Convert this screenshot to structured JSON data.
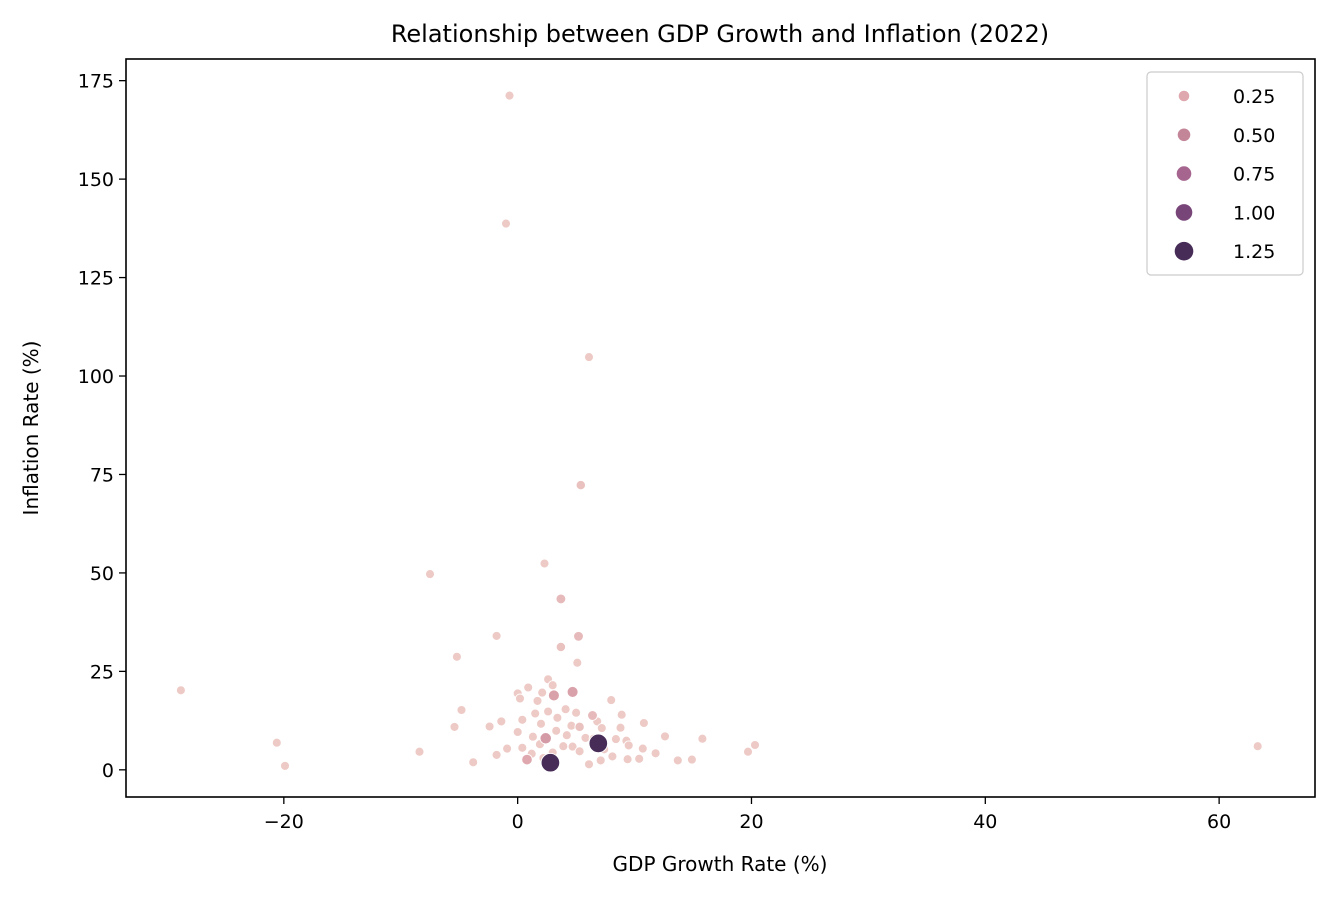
{
  "chart_data": {
    "type": "scatter",
    "title": "Relationship between GDP Growth and Inflation (2022)",
    "xlabel": "GDP Growth Rate (%)",
    "ylabel": "Inflation Rate (%)",
    "xlim": [
      -33.5,
      68.2
    ],
    "ylim": [
      -6.9,
      180.5
    ],
    "xticks": [
      -20,
      0,
      20,
      40,
      60
    ],
    "xtick_labels": [
      "−20",
      "0",
      "20",
      "40",
      "60"
    ],
    "yticks": [
      0,
      25,
      50,
      75,
      100,
      125,
      150,
      175
    ],
    "ytick_labels": [
      "0",
      "25",
      "50",
      "75",
      "100",
      "125",
      "150",
      "175"
    ],
    "grid": false,
    "legend": {
      "placement": "top-right",
      "entries": [
        {
          "label": "0.25",
          "value": 0.25,
          "color": "#dfa8ae"
        },
        {
          "label": "0.50",
          "value": 0.5,
          "color": "#c38698"
        },
        {
          "label": "0.75",
          "value": 0.75,
          "color": "#a5658e"
        },
        {
          "label": "1.00",
          "value": 1.0,
          "color": "#784578"
        },
        {
          "label": "1.25",
          "value": 1.25,
          "color": "#462c57"
        }
      ]
    },
    "points": [
      {
        "x": -0.7,
        "y": 171.2,
        "s": 0.05
      },
      {
        "x": -1.0,
        "y": 138.7,
        "s": 0.05
      },
      {
        "x": 6.1,
        "y": 104.8,
        "s": 0.05
      },
      {
        "x": 5.4,
        "y": 72.3,
        "s": 0.1
      },
      {
        "x": 2.3,
        "y": 52.4,
        "s": 0.05
      },
      {
        "x": -7.5,
        "y": 49.7,
        "s": 0.05
      },
      {
        "x": 3.7,
        "y": 43.4,
        "s": 0.15
      },
      {
        "x": -1.8,
        "y": 34.0,
        "s": 0.05
      },
      {
        "x": 5.2,
        "y": 33.9,
        "s": 0.15
      },
      {
        "x": 3.7,
        "y": 31.2,
        "s": 0.1
      },
      {
        "x": -5.2,
        "y": 28.7,
        "s": 0.05
      },
      {
        "x": 5.1,
        "y": 27.2,
        "s": 0.05
      },
      {
        "x": -28.8,
        "y": 20.2,
        "s": 0.05
      },
      {
        "x": 4.7,
        "y": 19.8,
        "s": 0.3
      },
      {
        "x": 3.1,
        "y": 18.9,
        "s": 0.3
      },
      {
        "x": 8.0,
        "y": 17.7,
        "s": 0.05
      },
      {
        "x": 2.6,
        "y": 23.0,
        "s": 0.05
      },
      {
        "x": 0.0,
        "y": 19.4,
        "s": 0.05
      },
      {
        "x": 0.2,
        "y": 18.1,
        "s": 0.05
      },
      {
        "x": 1.7,
        "y": 17.5,
        "s": 0.05
      },
      {
        "x": 0.9,
        "y": 20.9,
        "s": 0.05
      },
      {
        "x": 2.1,
        "y": 19.6,
        "s": 0.05
      },
      {
        "x": 3.0,
        "y": 21.5,
        "s": 0.05
      },
      {
        "x": -4.8,
        "y": 15.2,
        "s": 0.05
      },
      {
        "x": -1.4,
        "y": 12.3,
        "s": 0.05
      },
      {
        "x": -2.4,
        "y": 11.0,
        "s": 0.05
      },
      {
        "x": -5.4,
        "y": 10.9,
        "s": 0.05
      },
      {
        "x": 0.4,
        "y": 12.7,
        "s": 0.05
      },
      {
        "x": 1.5,
        "y": 14.3,
        "s": 0.05
      },
      {
        "x": 2.6,
        "y": 14.8,
        "s": 0.05
      },
      {
        "x": 3.4,
        "y": 13.2,
        "s": 0.05
      },
      {
        "x": 4.1,
        "y": 15.4,
        "s": 0.05
      },
      {
        "x": 5.0,
        "y": 14.5,
        "s": 0.05
      },
      {
        "x": 6.4,
        "y": 13.8,
        "s": 0.15
      },
      {
        "x": 6.8,
        "y": 12.3,
        "s": 0.05
      },
      {
        "x": 8.9,
        "y": 14.0,
        "s": 0.05
      },
      {
        "x": 10.8,
        "y": 11.9,
        "s": 0.05
      },
      {
        "x": 2.0,
        "y": 11.7,
        "s": 0.05
      },
      {
        "x": 4.6,
        "y": 11.2,
        "s": 0.05
      },
      {
        "x": 5.3,
        "y": 10.9,
        "s": 0.1
      },
      {
        "x": 7.2,
        "y": 10.6,
        "s": 0.05
      },
      {
        "x": 8.8,
        "y": 10.7,
        "s": 0.05
      },
      {
        "x": 3.3,
        "y": 9.9,
        "s": 0.05
      },
      {
        "x": 0.0,
        "y": 9.6,
        "s": 0.05
      },
      {
        "x": 2.4,
        "y": 8.0,
        "s": 0.35
      },
      {
        "x": 1.3,
        "y": 8.4,
        "s": 0.05
      },
      {
        "x": 4.2,
        "y": 8.8,
        "s": 0.05
      },
      {
        "x": 5.8,
        "y": 8.1,
        "s": 0.05
      },
      {
        "x": 6.5,
        "y": 7.9,
        "s": 0.05
      },
      {
        "x": 8.4,
        "y": 7.8,
        "s": 0.05
      },
      {
        "x": 9.3,
        "y": 7.4,
        "s": 0.05
      },
      {
        "x": 12.6,
        "y": 8.5,
        "s": 0.05
      },
      {
        "x": 15.8,
        "y": 7.9,
        "s": 0.05
      },
      {
        "x": -20.6,
        "y": 6.9,
        "s": 0.05
      },
      {
        "x": -0.9,
        "y": 5.4,
        "s": 0.05
      },
      {
        "x": 0.4,
        "y": 5.6,
        "s": 0.05
      },
      {
        "x": 1.9,
        "y": 6.5,
        "s": 0.05
      },
      {
        "x": 3.9,
        "y": 6.0,
        "s": 0.05
      },
      {
        "x": 4.7,
        "y": 5.9,
        "s": 0.05
      },
      {
        "x": 6.9,
        "y": 6.7,
        "s": 1.25
      },
      {
        "x": 7.4,
        "y": 5.2,
        "s": 0.05
      },
      {
        "x": 9.5,
        "y": 6.2,
        "s": 0.05
      },
      {
        "x": 10.7,
        "y": 5.4,
        "s": 0.05
      },
      {
        "x": 20.3,
        "y": 6.3,
        "s": 0.05
      },
      {
        "x": 63.3,
        "y": 6.0,
        "s": 0.05
      },
      {
        "x": -8.4,
        "y": 4.6,
        "s": 0.05
      },
      {
        "x": -1.8,
        "y": 3.8,
        "s": 0.05
      },
      {
        "x": 1.2,
        "y": 4.1,
        "s": 0.05
      },
      {
        "x": 3.0,
        "y": 4.4,
        "s": 0.05
      },
      {
        "x": 5.3,
        "y": 4.7,
        "s": 0.05
      },
      {
        "x": 8.1,
        "y": 3.4,
        "s": 0.05
      },
      {
        "x": 11.8,
        "y": 4.2,
        "s": 0.05
      },
      {
        "x": 19.7,
        "y": 4.6,
        "s": 0.05
      },
      {
        "x": 0.8,
        "y": 2.6,
        "s": 0.25
      },
      {
        "x": 2.2,
        "y": 3.0,
        "s": 0.05
      },
      {
        "x": 7.1,
        "y": 2.4,
        "s": 0.05
      },
      {
        "x": 9.4,
        "y": 2.7,
        "s": 0.05
      },
      {
        "x": 10.4,
        "y": 2.8,
        "s": 0.05
      },
      {
        "x": 13.7,
        "y": 2.4,
        "s": 0.05
      },
      {
        "x": 14.9,
        "y": 2.6,
        "s": 0.05
      },
      {
        "x": -3.8,
        "y": 1.9,
        "s": 0.05
      },
      {
        "x": 6.1,
        "y": 1.4,
        "s": 0.05
      },
      {
        "x": -19.9,
        "y": 1.0,
        "s": 0.05
      },
      {
        "x": 2.8,
        "y": 1.8,
        "s": 1.25
      }
    ]
  }
}
